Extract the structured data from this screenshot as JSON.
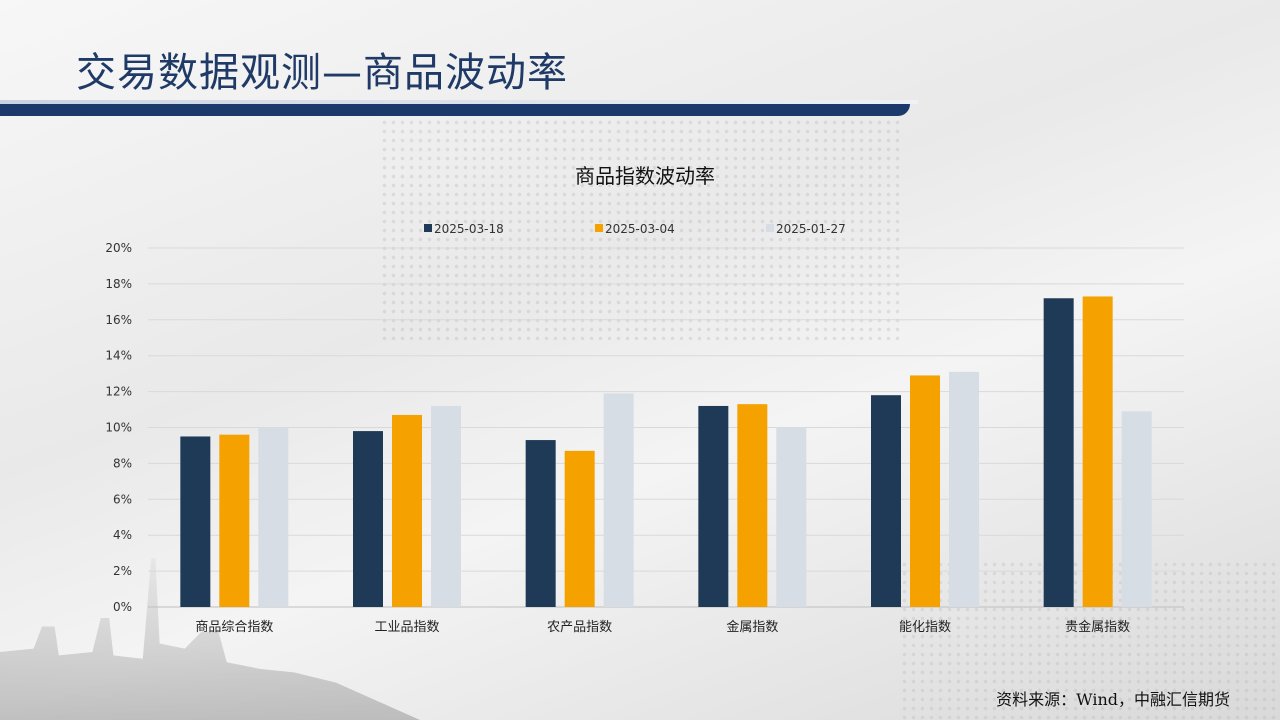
{
  "page": {
    "title": "交易数据观测—商品波动率",
    "source": "资料来源：Wind，中融汇信期货"
  },
  "chart_data": {
    "type": "bar",
    "title": "商品指数波动率",
    "categories": [
      "商品综合指数",
      "工业品指数",
      "农产品指数",
      "金属指数",
      "能化指数",
      "贵金属指数"
    ],
    "series": [
      {
        "name": "2025-03-18",
        "color": "#1f3a56",
        "values": [
          9.5,
          9.8,
          9.3,
          11.2,
          11.8,
          17.2
        ]
      },
      {
        "name": "2025-03-04",
        "color": "#f5a100",
        "values": [
          9.6,
          10.7,
          8.7,
          11.3,
          12.9,
          17.3
        ]
      },
      {
        "name": "2025-01-27",
        "color": "#d7dde5",
        "values": [
          10.0,
          11.2,
          11.9,
          10.0,
          13.1,
          10.9
        ]
      }
    ],
    "ylim": [
      0,
      20
    ],
    "yticks": [
      "0%",
      "2%",
      "4%",
      "6%",
      "8%",
      "10%",
      "12%",
      "14%",
      "16%",
      "18%",
      "20%"
    ],
    "grid": true,
    "legend_position": "top-center"
  }
}
